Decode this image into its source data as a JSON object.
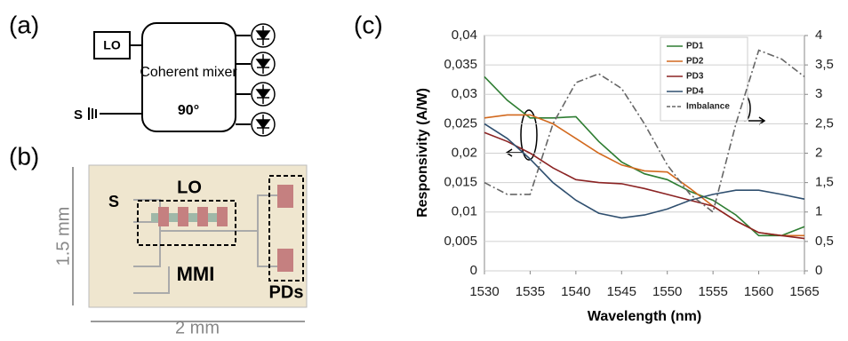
{
  "panel_labels": [
    "(a)",
    "(b)",
    "(c)"
  ],
  "diagram_a": {
    "lo": "LO",
    "mixer": "Coherent mixer",
    "angle": "90°",
    "signal": "S"
  },
  "diagram_b": {
    "signal": "S",
    "lo": "LO",
    "mmi": "MMI",
    "pds": "PDs",
    "height": "1.5 mm",
    "width": "2 mm"
  },
  "chart_data": {
    "type": "line",
    "xlabel": "Wavelength (nm)",
    "ylabel": "Responsivity (A/W)",
    "x": [
      1530,
      1532.5,
      1535,
      1537.5,
      1540,
      1542.5,
      1545,
      1547.5,
      1550,
      1552.5,
      1555,
      1557.5,
      1560,
      1562.5,
      1565
    ],
    "xlim": [
      1530,
      1565
    ],
    "xticks": [
      1530,
      1535,
      1540,
      1545,
      1550,
      1555,
      1560,
      1565
    ],
    "ylim": [
      0,
      0.04
    ],
    "yticks": [
      0,
      {
        "value": 0.005,
        "label": "0,005"
      },
      {
        "value": 0.01,
        "label": "0,01"
      },
      {
        "value": 0.015,
        "label": "0,015"
      },
      {
        "value": 0.02,
        "label": "0,02"
      },
      {
        "value": 0.025,
        "label": "0,025"
      },
      {
        "value": 0.03,
        "label": "0,03"
      },
      {
        "value": 0.035,
        "label": "0,035"
      },
      {
        "value": 0.04,
        "label": "0,04"
      }
    ],
    "y2lim": [
      0,
      4
    ],
    "y2ticks": [
      0,
      {
        "value": 0.5,
        "label": "0,5"
      },
      1,
      {
        "value": 1.5,
        "label": "1,5"
      },
      2,
      {
        "value": 2.5,
        "label": "2,5"
      },
      3,
      {
        "value": 3.5,
        "label": "3,5"
      },
      4
    ],
    "grid": true,
    "series": [
      {
        "name": "PD1",
        "color": "#2e7d32",
        "values": [
          0.033,
          0.029,
          0.026,
          0.026,
          0.0262,
          0.022,
          0.0185,
          0.0165,
          0.0155,
          0.0135,
          0.012,
          0.0095,
          0.006,
          0.006,
          0.0075
        ]
      },
      {
        "name": "PD2",
        "color": "#d2691e",
        "values": [
          0.026,
          0.0265,
          0.0265,
          0.025,
          0.0225,
          0.02,
          0.018,
          0.017,
          0.0168,
          0.014,
          0.011,
          0.0085,
          0.0065,
          0.006,
          0.006
        ]
      },
      {
        "name": "PD3",
        "color": "#8b2323",
        "values": [
          0.0235,
          0.022,
          0.02,
          0.0175,
          0.0155,
          0.015,
          0.0148,
          0.014,
          0.013,
          0.012,
          0.011,
          0.0085,
          0.0065,
          0.006,
          0.0055
        ]
      },
      {
        "name": "PD4",
        "color": "#2f4f6f",
        "values": [
          0.025,
          0.0225,
          0.019,
          0.015,
          0.012,
          0.0098,
          0.009,
          0.0095,
          0.0105,
          0.012,
          0.013,
          0.0137,
          0.0137,
          0.013,
          0.0122
        ]
      },
      {
        "name": "Imbalance",
        "color": "#666666",
        "axis": "y2",
        "dash": true,
        "values": [
          1.5,
          1.3,
          1.3,
          2.5,
          3.2,
          3.35,
          3.1,
          2.5,
          1.8,
          1.3,
          1.0,
          2.5,
          3.75,
          3.6,
          3.3
        ]
      }
    ]
  }
}
